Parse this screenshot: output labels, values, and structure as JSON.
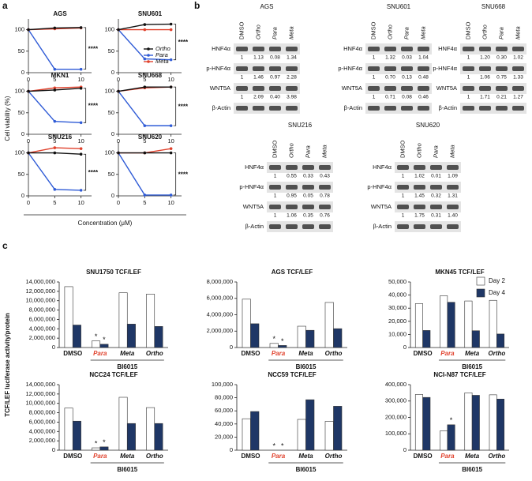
{
  "panel_labels": [
    "a",
    "b",
    "c"
  ],
  "panel_a": {
    "ylabel": "Cell viability (%)",
    "xlabel": "Concentration (μM)"
  },
  "panel_c": {
    "ylabel": "TCF/LEF luciferase activity/protein"
  },
  "chart_data": [
    {
      "type": "line",
      "title": "AGS",
      "x": [
        0,
        5,
        10
      ],
      "xlim": [
        0,
        12
      ],
      "ylim": [
        0,
        125
      ],
      "xticks": [
        0,
        5,
        10
      ],
      "yticks": [
        0,
        50,
        100
      ],
      "annotation": "****",
      "series": [
        {
          "name": "Ortho",
          "color": "#111111",
          "values": [
            100,
            104,
            105
          ]
        },
        {
          "name": "Para",
          "color": "#2f5bd6",
          "values": [
            100,
            8,
            8
          ]
        },
        {
          "name": "Meta",
          "color": "#e0412c",
          "values": [
            100,
            102,
            104
          ]
        }
      ]
    },
    {
      "type": "line",
      "title": "SNU601",
      "x": [
        0,
        5,
        10
      ],
      "xlim": [
        0,
        12
      ],
      "ylim": [
        0,
        125
      ],
      "xticks": [
        0,
        5,
        10
      ],
      "yticks": [
        0,
        50,
        100
      ],
      "annotation": "****",
      "series": [
        {
          "name": "Ortho",
          "color": "#111111",
          "values": [
            100,
            112,
            113
          ]
        },
        {
          "name": "Para",
          "color": "#2f5bd6",
          "values": [
            100,
            32,
            30
          ]
        },
        {
          "name": "Meta",
          "color": "#e0412c",
          "values": [
            100,
            100,
            100
          ]
        }
      ]
    },
    {
      "type": "line",
      "title": "MKN1",
      "x": [
        0,
        5,
        10
      ],
      "xlim": [
        0,
        12
      ],
      "ylim": [
        0,
        125
      ],
      "xticks": [
        0,
        5,
        10
      ],
      "yticks": [
        0,
        50,
        100
      ],
      "annotation": "****",
      "series": [
        {
          "name": "Ortho",
          "color": "#111111",
          "values": [
            100,
            103,
            107
          ]
        },
        {
          "name": "Para",
          "color": "#2f5bd6",
          "values": [
            100,
            30,
            27
          ]
        },
        {
          "name": "Meta",
          "color": "#e0412c",
          "values": [
            100,
            108,
            110
          ]
        }
      ]
    },
    {
      "type": "line",
      "title": "SNU668",
      "x": [
        0,
        5,
        10
      ],
      "xlim": [
        0,
        12
      ],
      "ylim": [
        0,
        125
      ],
      "xticks": [
        0,
        5,
        10
      ],
      "yticks": [
        0,
        50,
        100
      ],
      "annotation": "****",
      "series": [
        {
          "name": "Ortho",
          "color": "#111111",
          "values": [
            100,
            110,
            110
          ]
        },
        {
          "name": "Para",
          "color": "#2f5bd6",
          "values": [
            100,
            20,
            20
          ]
        },
        {
          "name": "Meta",
          "color": "#e0412c",
          "values": [
            100,
            108,
            110
          ]
        }
      ]
    },
    {
      "type": "line",
      "title": "SNU216",
      "x": [
        0,
        5,
        10
      ],
      "xlim": [
        0,
        12
      ],
      "ylim": [
        0,
        125
      ],
      "xticks": [
        0,
        5,
        10
      ],
      "yticks": [
        0,
        50,
        100
      ],
      "annotation": "****",
      "series": [
        {
          "name": "Ortho",
          "color": "#111111",
          "values": [
            100,
            100,
            97
          ]
        },
        {
          "name": "Para",
          "color": "#2f5bd6",
          "values": [
            100,
            15,
            13
          ]
        },
        {
          "name": "Meta",
          "color": "#e0412c",
          "values": [
            100,
            112,
            110
          ]
        }
      ]
    },
    {
      "type": "line",
      "title": "SNU620",
      "x": [
        0,
        5,
        10
      ],
      "xlim": [
        0,
        12
      ],
      "ylim": [
        0,
        125
      ],
      "xticks": [
        0,
        5,
        10
      ],
      "yticks": [
        0,
        50,
        100
      ],
      "annotation": "****",
      "series": [
        {
          "name": "Ortho",
          "color": "#111111",
          "values": [
            100,
            100,
            100
          ]
        },
        {
          "name": "Para",
          "color": "#2f5bd6",
          "values": [
            100,
            2,
            2
          ]
        },
        {
          "name": "Meta",
          "color": "#e0412c",
          "values": [
            100,
            100,
            110
          ]
        }
      ]
    },
    {
      "type": "bar",
      "title": "SNU1750 TCF/LEF",
      "categories": [
        "DMSO",
        "Para",
        "Meta",
        "Ortho"
      ],
      "group_label": "BI6015",
      "ylim": [
        0,
        14000000
      ],
      "yticks": [
        0,
        {
          "value": 2000000,
          "label": "2,000,000"
        },
        {
          "value": 4000000,
          "label": "4,000,000"
        },
        {
          "value": 6000000,
          "label": "6,000,000"
        },
        {
          "value": 8000000,
          "label": "8,000,000"
        },
        {
          "value": 10000000,
          "label": "10,000,000"
        },
        {
          "value": 12000000,
          "label": "12,000,000"
        },
        {
          "value": 14000000,
          "label": "14,000,000"
        }
      ],
      "series": [
        {
          "name": "Day 2",
          "color": "#ffffff",
          "values": [
            13000000,
            1400000,
            11700000,
            11400000
          ],
          "markers": [
            null,
            "*",
            null,
            null
          ]
        },
        {
          "name": "Day 4",
          "color": "#1f3766",
          "values": [
            4800000,
            700000,
            5000000,
            4500000
          ],
          "markers": [
            null,
            "*",
            null,
            null
          ]
        }
      ]
    },
    {
      "type": "bar",
      "title": "AGS TCF/LEF",
      "categories": [
        "DMSO",
        "Para",
        "Meta",
        "Ortho"
      ],
      "group_label": "BI6015",
      "ylim": [
        0,
        8000000
      ],
      "yticks": [
        0,
        {
          "value": 2000000,
          "label": "2,000,000"
        },
        {
          "value": 4000000,
          "label": "4,000,000"
        },
        {
          "value": 6000000,
          "label": "6,000,000"
        },
        {
          "value": 8000000,
          "label": "8,000,000"
        }
      ],
      "series": [
        {
          "name": "Day 2",
          "color": "#ffffff",
          "values": [
            5900000,
            500000,
            2600000,
            5500000
          ],
          "markers": [
            null,
            "*",
            null,
            null
          ]
        },
        {
          "name": "Day 4",
          "color": "#1f3766",
          "values": [
            2900000,
            250000,
            2100000,
            2300000
          ],
          "markers": [
            null,
            "*",
            null,
            null
          ]
        }
      ]
    },
    {
      "type": "bar",
      "title": "MKN45 TCF/LEF",
      "categories": [
        "DMSO",
        "Para",
        "Meta",
        "Ortho"
      ],
      "group_label": "BI6015",
      "ylim": [
        0,
        50000
      ],
      "yticks": [
        0,
        {
          "value": 10000,
          "label": "10,000"
        },
        {
          "value": 20000,
          "label": "20,000"
        },
        {
          "value": 30000,
          "label": "30,000"
        },
        {
          "value": 40000,
          "label": "40,000"
        },
        {
          "value": 50000,
          "label": "50,000"
        }
      ],
      "series": [
        {
          "name": "Day 2",
          "color": "#ffffff",
          "values": [
            33500,
            39500,
            35500,
            36000
          ]
        },
        {
          "name": "Day 4",
          "color": "#1f3766",
          "values": [
            13000,
            34500,
            12800,
            10300
          ]
        }
      ]
    },
    {
      "type": "bar",
      "title": "NCC24 TCF/LEF",
      "categories": [
        "DMSO",
        "Para",
        "Meta",
        "Ortho"
      ],
      "group_label": "BI6015",
      "ylim": [
        0,
        14000000
      ],
      "yticks": [
        0,
        {
          "value": 2000000,
          "label": "2,000,000"
        },
        {
          "value": 4000000,
          "label": "4,000,000"
        },
        {
          "value": 6000000,
          "label": "6,000,000"
        },
        {
          "value": 8000000,
          "label": "8,000,000"
        },
        {
          "value": 10000000,
          "label": "10,000,000"
        },
        {
          "value": 12000000,
          "label": "12,000,000"
        },
        {
          "value": 14000000,
          "label": "14,000,000"
        }
      ],
      "series": [
        {
          "name": "Day 2",
          "color": "#ffffff",
          "values": [
            9000000,
            500000,
            11300000,
            9100000
          ],
          "markers": [
            null,
            "*",
            null,
            null
          ]
        },
        {
          "name": "Day 4",
          "color": "#1f3766",
          "values": [
            6200000,
            700000,
            5700000,
            5700000
          ],
          "markers": [
            null,
            "*",
            null,
            null
          ]
        }
      ]
    },
    {
      "type": "bar",
      "title": "NCC59 TCF/LEF",
      "categories": [
        "DMSO",
        "Para",
        "Meta",
        "Ortho"
      ],
      "group_label": "BI6015",
      "ylim": [
        0,
        100000
      ],
      "yticks": [
        0,
        {
          "value": 20000,
          "label": "20,000"
        },
        {
          "value": 40000,
          "label": "40,000"
        },
        {
          "value": 60000,
          "label": "60,000"
        },
        {
          "value": 80000,
          "label": "80,000"
        },
        {
          "value": 100000,
          "label": "100,000"
        }
      ],
      "series": [
        {
          "name": "Day 2",
          "color": "#ffffff",
          "values": [
            48000,
            0,
            47000,
            44000
          ],
          "markers": [
            null,
            "*",
            null,
            null
          ]
        },
        {
          "name": "Day 4",
          "color": "#1f3766",
          "values": [
            59000,
            0,
            77000,
            67000
          ],
          "markers": [
            null,
            "*",
            null,
            null
          ]
        }
      ]
    },
    {
      "type": "bar",
      "title": "NCI-N87 TCF/LEF",
      "categories": [
        "DMSO",
        "Para",
        "Meta",
        "Ortho"
      ],
      "group_label": "BI6015",
      "ylim": [
        0,
        400000
      ],
      "yticks": [
        0,
        {
          "value": 100000,
          "label": "100,000"
        },
        {
          "value": 200000,
          "label": "200,000"
        },
        {
          "value": 300000,
          "label": "300,000"
        },
        {
          "value": 400000,
          "label": "400,000"
        }
      ],
      "series": [
        {
          "name": "Day 2",
          "color": "#ffffff",
          "values": [
            340000,
            118000,
            350000,
            338000
          ]
        },
        {
          "name": "Day 4",
          "color": "#1f3766",
          "values": [
            322000,
            155000,
            335000,
            312000
          ],
          "markers": [
            null,
            "*",
            null,
            null
          ]
        }
      ]
    }
  ],
  "blots": [
    {
      "title": "AGS",
      "lanes": [
        "DMSO",
        "Ortho",
        "Para",
        "Meta"
      ],
      "rows": [
        {
          "protein": "HNF4α",
          "values": [
            "1",
            "1.13",
            "0.08",
            "1.34"
          ]
        },
        {
          "protein": "p-HNF4α",
          "values": [
            "1",
            "1.46",
            "0.97",
            "2.28"
          ]
        },
        {
          "protein": "WNT5A",
          "values": [
            "1",
            "2.09",
            "0.40",
            "3.98"
          ]
        }
      ],
      "loading": "β-Actin"
    },
    {
      "title": "SNU601",
      "lanes": [
        "DMSO",
        "Ortho",
        "Para",
        "Meta"
      ],
      "rows": [
        {
          "protein": "HNF4α",
          "values": [
            "1",
            "1.32",
            "0.03",
            "1.04"
          ]
        },
        {
          "protein": "p-HNF4α",
          "values": [
            "1",
            "0.70",
            "0.13",
            "0.48"
          ]
        },
        {
          "protein": "WNT5A",
          "values": [
            "1",
            "0.71",
            "0.08",
            "0.46"
          ]
        }
      ],
      "loading": "β-Actin"
    },
    {
      "title": "SNU668",
      "lanes": [
        "DMSO",
        "Ortho",
        "Para",
        "Meta"
      ],
      "rows": [
        {
          "protein": "HNF4α",
          "values": [
            "1",
            "1.20",
            "0.30",
            "1.02"
          ]
        },
        {
          "protein": "p-HNF4α",
          "values": [
            "1",
            "1.06",
            "0.75",
            "1.33"
          ]
        },
        {
          "protein": "WNT5A",
          "values": [
            "1",
            "1.71",
            "0.21",
            "1.27"
          ]
        }
      ],
      "loading": "β-Actin"
    },
    {
      "title": "SNU216",
      "lanes": [
        "DMSO",
        "Ortho",
        "Para",
        "Meta"
      ],
      "rows": [
        {
          "protein": "HNF4α",
          "values": [
            "1",
            "0.55",
            "0.33",
            "0.43"
          ]
        },
        {
          "protein": "p-HNF4α",
          "values": [
            "1",
            "0.95",
            "0.05",
            "0.78"
          ]
        },
        {
          "protein": "WNT5A",
          "values": [
            "1",
            "1.06",
            "0.35",
            "0.76"
          ]
        }
      ],
      "loading": "β-Actin"
    },
    {
      "title": "SNU620",
      "lanes": [
        "DMSO",
        "Ortho",
        "Para",
        "Meta"
      ],
      "rows": [
        {
          "protein": "HNF4α",
          "values": [
            "1",
            "1.02",
            "0.01",
            "1.09"
          ]
        },
        {
          "protein": "p-HNF4α",
          "values": [
            "1",
            "1.45",
            "0.32",
            "1.31"
          ]
        },
        {
          "protein": "WNT5A",
          "values": [
            "1",
            "1.75",
            "0.31",
            "1.40"
          ]
        }
      ],
      "loading": "β-Actin"
    }
  ]
}
